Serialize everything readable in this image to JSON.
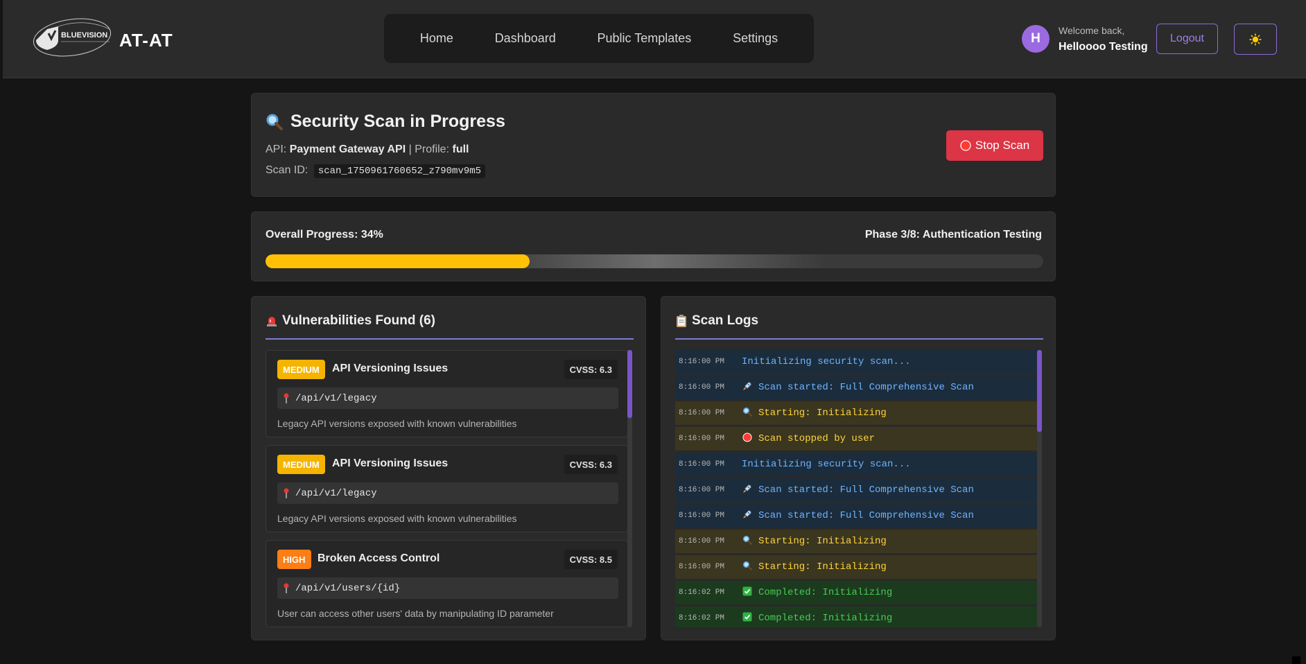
{
  "header": {
    "logo_text": "BLUEVISION",
    "brand": "AT-AT",
    "nav": [
      "Home",
      "Dashboard",
      "Public Templates",
      "Settings"
    ],
    "avatar_initial": "H",
    "welcome": "Welcome back,",
    "username": "Helloooo Testing",
    "logout": "Logout",
    "theme_icon": "sun-icon"
  },
  "scan": {
    "title": "Security Scan in Progress",
    "title_icon": "magnifier-icon",
    "api_label": "API:",
    "api_name": "Payment Gateway API",
    "profile_label": "| Profile:",
    "profile": "full",
    "scan_id_label": "Scan ID:",
    "scan_id": "scan_1750961760652_z790mv9m5",
    "stop_button": "Stop Scan"
  },
  "progress": {
    "label": "Overall Progress: 34%",
    "percent": 34,
    "phase": "Phase 3/8: Authentication Testing"
  },
  "vulnerabilities": {
    "title": "Vulnerabilities Found (6)",
    "title_icon": "siren-icon",
    "items": [
      {
        "severity": "MEDIUM",
        "title": "API Versioning Issues",
        "cvss": "CVSS: 6.3",
        "endpoint": "/api/v1/legacy",
        "description": "Legacy API versions exposed with known vulnerabilities"
      },
      {
        "severity": "MEDIUM",
        "title": "API Versioning Issues",
        "cvss": "CVSS: 6.3",
        "endpoint": "/api/v1/legacy",
        "description": "Legacy API versions exposed with known vulnerabilities"
      },
      {
        "severity": "HIGH",
        "title": "Broken Access Control",
        "cvss": "CVSS: 8.5",
        "endpoint": "/api/v1/users/{id}",
        "description": "User can access other users' data by manipulating ID parameter"
      }
    ]
  },
  "logs": {
    "title": "Scan Logs",
    "title_icon": "clipboard-icon",
    "entries": [
      {
        "time": "8:16:00 PM",
        "message": "Initializing security scan...",
        "level": "info",
        "icon": ""
      },
      {
        "time": "8:16:00 PM",
        "message": "Scan started: Full Comprehensive Scan",
        "level": "info",
        "icon": "rocket-icon"
      },
      {
        "time": "8:16:00 PM",
        "message": "Starting: Initializing",
        "level": "warn",
        "icon": "magnifier-icon"
      },
      {
        "time": "8:16:00 PM",
        "message": "Scan stopped by user",
        "level": "warn",
        "icon": "stop-icon"
      },
      {
        "time": "8:16:00 PM",
        "message": "Initializing security scan...",
        "level": "info",
        "icon": ""
      },
      {
        "time": "8:16:00 PM",
        "message": "Scan started: Full Comprehensive Scan",
        "level": "info",
        "icon": "rocket-icon"
      },
      {
        "time": "8:16:00 PM",
        "message": "Scan started: Full Comprehensive Scan",
        "level": "info",
        "icon": "rocket-icon"
      },
      {
        "time": "8:16:00 PM",
        "message": "Starting: Initializing",
        "level": "warn",
        "icon": "magnifier-icon"
      },
      {
        "time": "8:16:00 PM",
        "message": "Starting: Initializing",
        "level": "warn",
        "icon": "magnifier-icon"
      },
      {
        "time": "8:16:02 PM",
        "message": "Completed: Initializing",
        "level": "ok",
        "icon": "check-icon"
      },
      {
        "time": "8:16:02 PM",
        "message": "Completed: Initializing",
        "level": "ok",
        "icon": "check-icon"
      }
    ]
  },
  "colors": {
    "accent": "#8c6cd6",
    "progress": "#ffc107",
    "danger": "#dc3545",
    "medium": "#f5b400",
    "high": "#fd7e14"
  }
}
